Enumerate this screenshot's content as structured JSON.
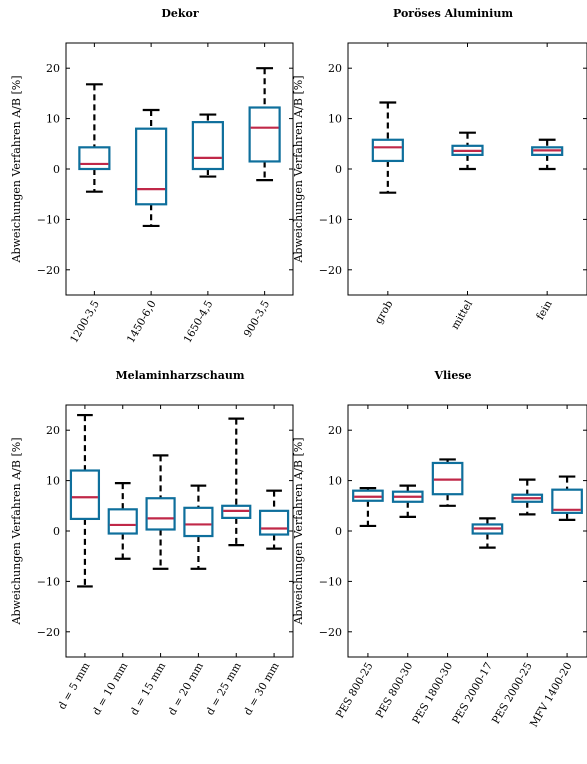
{
  "chart_data": [
    {
      "type": "box",
      "title": "Dekor",
      "ylabel": "Abweichungen Verfahren A/B [%]",
      "ylim": [
        -25,
        25
      ],
      "yticks": [
        "−20",
        "−10",
        "0",
        "10",
        "20"
      ],
      "categories": [
        "1200-3,5",
        "1450-6,0",
        "1650-4,5",
        "900-3,5"
      ],
      "boxes": [
        {
          "low": -4.5,
          "q1": 0,
          "median": 1.0,
          "q3": 4.3,
          "high": 16.8
        },
        {
          "low": -11.3,
          "q1": -7.0,
          "median": -4.0,
          "q3": 8.0,
          "high": 11.7
        },
        {
          "low": -1.5,
          "q1": 0,
          "median": 2.2,
          "q3": 9.3,
          "high": 10.8
        },
        {
          "low": -2.2,
          "q1": 1.5,
          "median": 8.2,
          "q3": 12.2,
          "high": 20.0
        }
      ]
    },
    {
      "type": "box",
      "title": "Poröses Aluminium",
      "ylabel": "Abweichungen Verfahren A/B [%]",
      "ylim": [
        -25,
        25
      ],
      "yticks": [
        "−20",
        "−10",
        "0",
        "10",
        "20"
      ],
      "categories": [
        "grob",
        "mittel",
        "fein"
      ],
      "boxes": [
        {
          "low": -4.7,
          "q1": 1.6,
          "median": 4.3,
          "q3": 5.8,
          "high": 13.2
        },
        {
          "low": 0,
          "q1": 2.8,
          "median": 3.6,
          "q3": 4.6,
          "high": 7.2
        },
        {
          "low": 0,
          "q1": 2.8,
          "median": 3.7,
          "q3": 4.3,
          "high": 5.8
        }
      ]
    },
    {
      "type": "box",
      "title": "Melaminharzschaum",
      "ylabel": "Abweichungen Verfahren A/B [%]",
      "ylim": [
        -25,
        25
      ],
      "yticks": [
        "−20",
        "−10",
        "0",
        "10",
        "20"
      ],
      "categories": [
        "d = 5 mm",
        "d = 10 mm",
        "d = 15 mm",
        "d = 20 mm",
        "d = 25 mm",
        "d = 30 mm"
      ],
      "boxes": [
        {
          "low": -11.0,
          "q1": 2.4,
          "median": 6.7,
          "q3": 12.0,
          "high": 23.0
        },
        {
          "low": -5.5,
          "q1": -0.5,
          "median": 1.2,
          "q3": 4.3,
          "high": 9.5
        },
        {
          "low": -7.5,
          "q1": 0.3,
          "median": 2.5,
          "q3": 6.5,
          "high": 15.0
        },
        {
          "low": -7.5,
          "q1": -1.0,
          "median": 1.3,
          "q3": 4.6,
          "high": 9.0
        },
        {
          "low": -2.8,
          "q1": 2.6,
          "median": 4.0,
          "q3": 5.0,
          "high": 22.3
        },
        {
          "low": -3.5,
          "q1": -0.7,
          "median": 0.5,
          "q3": 4.0,
          "high": 8.0
        }
      ]
    },
    {
      "type": "box",
      "title": "Vliese",
      "ylabel": "Abweichungen Verfahren A/B [%]",
      "ylim": [
        -25,
        25
      ],
      "yticks": [
        "−20",
        "−10",
        "0",
        "10",
        "20"
      ],
      "categories": [
        "PES 800-25",
        "PES 800-30",
        "PES 1800-30",
        "PES 2000-17",
        "PES 2000-25",
        "MFV 1400-20"
      ],
      "boxes": [
        {
          "low": 1.0,
          "q1": 6.0,
          "median": 6.8,
          "q3": 8.0,
          "high": 8.5
        },
        {
          "low": 2.8,
          "q1": 5.8,
          "median": 6.8,
          "q3": 7.8,
          "high": 9.0
        },
        {
          "low": 5.0,
          "q1": 7.3,
          "median": 10.2,
          "q3": 13.5,
          "high": 14.2
        },
        {
          "low": -3.3,
          "q1": -0.5,
          "median": 0.5,
          "q3": 1.3,
          "high": 2.5
        },
        {
          "low": 3.3,
          "q1": 5.8,
          "median": 6.5,
          "q3": 7.2,
          "high": 10.2
        },
        {
          "low": 2.2,
          "q1": 3.6,
          "median": 4.2,
          "q3": 8.2,
          "high": 10.8
        }
      ]
    }
  ],
  "colors": {
    "box": "#0e6f9c",
    "median": "#c02848",
    "whisker": "#000000",
    "axis": "#000000"
  }
}
